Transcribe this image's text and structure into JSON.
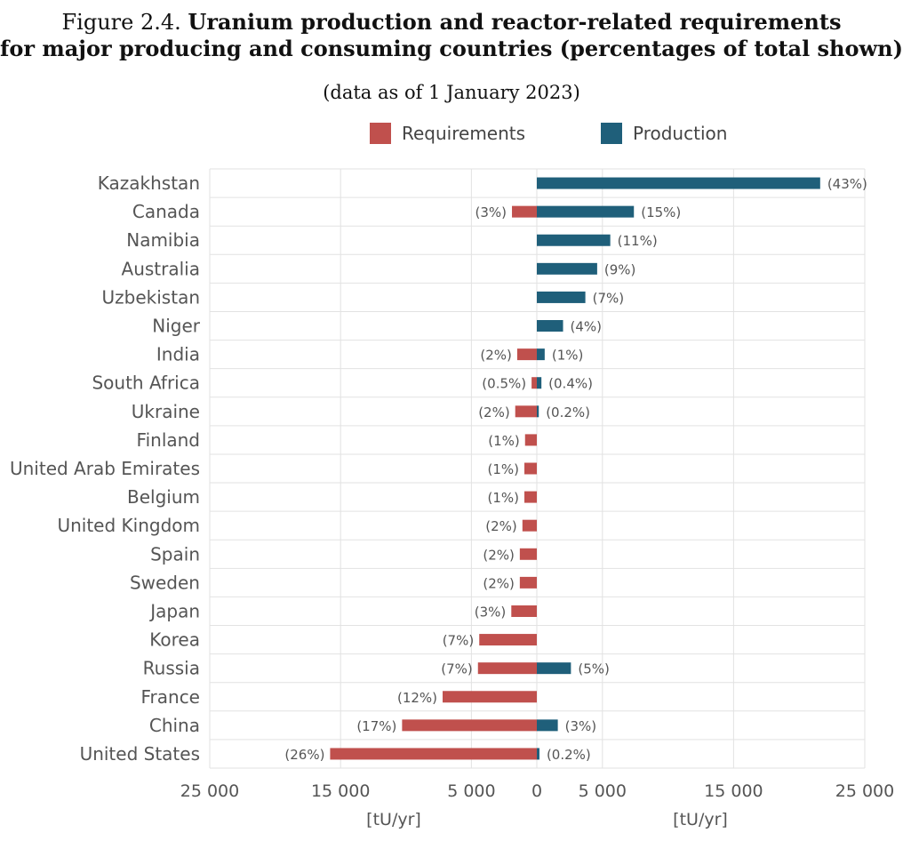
{
  "title": {
    "prefix": "Figure 2.4.",
    "line1_bold": "Uranium production and reactor-related requirements",
    "line2": "for major producing and consuming countries (percentages of total shown)"
  },
  "subtitle": "(data as of 1 January 2023)",
  "colors": {
    "requirements": "#c0504d",
    "production": "#1f5f7a",
    "grid": "#e2e2e2"
  },
  "chart_data": {
    "type": "bar",
    "orientation": "horizontal",
    "legend": [
      "Requirements",
      "Production"
    ],
    "legend_position": "top",
    "grid": true,
    "categories": [
      "Kazakhstan",
      "Canada",
      "Namibia",
      "Australia",
      "Uzbekistan",
      "Niger",
      "India",
      "South Africa",
      "Ukraine",
      "Finland",
      "United Arab Emirates",
      "Belgium",
      "United Kingdom",
      "Spain",
      "Sweden",
      "Japan",
      "Korea",
      "Russia",
      "France",
      "China",
      "United States"
    ],
    "series": [
      {
        "name": "Requirements",
        "values": [
          0,
          1900,
          0,
          0,
          0,
          0,
          1500,
          400,
          1650,
          900,
          950,
          950,
          1100,
          1300,
          1300,
          1950,
          4400,
          4500,
          7200,
          10300,
          15800
        ],
        "labels": [
          "",
          "(3%)",
          "",
          "",
          "",
          "",
          "(2%)",
          "(0.5%)",
          "(2%)",
          "(1%)",
          "(1%)",
          "(1%)",
          "(2%)",
          "(2%)",
          "(2%)",
          "(3%)",
          "(7%)",
          "(7%)",
          "(12%)",
          "(17%)",
          "(26%)"
        ]
      },
      {
        "name": "Production",
        "values": [
          21600,
          7400,
          5600,
          4600,
          3700,
          2000,
          600,
          350,
          150,
          0,
          0,
          0,
          0,
          0,
          0,
          0,
          0,
          2600,
          0,
          1600,
          200
        ],
        "labels": [
          "(43%)",
          "(15%)",
          "(11%)",
          "(9%)",
          "(7%)",
          "(4%)",
          "(1%)",
          "(0.4%)",
          "(0.2%)",
          "",
          "",
          "",
          "",
          "",
          "",
          "",
          "",
          "(5%)",
          "",
          "(3%)",
          "(0.2%)"
        ]
      }
    ],
    "x_ticks": [
      {
        "value": -25000,
        "label": "25 000"
      },
      {
        "value": -15000,
        "label": "15 000"
      },
      {
        "value": -5000,
        "label": "5 000"
      },
      {
        "value": 0,
        "label": "0"
      },
      {
        "value": 5000,
        "label": "5 000"
      },
      {
        "value": 15000,
        "label": "15 000"
      },
      {
        "value": 25000,
        "label": "25 000"
      }
    ],
    "xlim": [
      -25000,
      25000
    ],
    "xlabel_left": "[tU/yr]",
    "xlabel_right": "[tU/yr]"
  }
}
